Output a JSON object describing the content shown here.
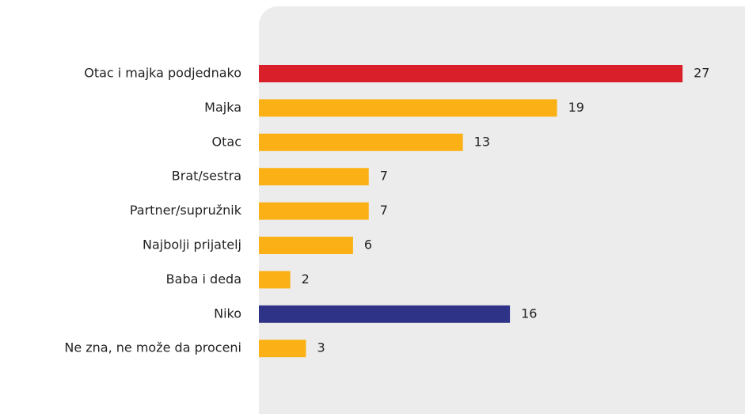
{
  "chart_data": {
    "type": "bar",
    "orientation": "horizontal",
    "categories": [
      "Otac i majka podjednako",
      "Majka",
      "Otac",
      "Brat/sestra",
      "Partner/supružnik",
      "Najbolji prijatelj",
      "Baba i deda",
      "Niko",
      "Ne zna, ne može da proceni"
    ],
    "values": [
      27,
      19,
      13,
      7,
      7,
      6,
      2,
      16,
      3
    ],
    "colors": [
      "#d9202a",
      "#fbb116",
      "#fbb116",
      "#fbb116",
      "#fbb116",
      "#fbb116",
      "#fbb116",
      "#2e3388",
      "#fbb116"
    ],
    "data_labels": true
  }
}
